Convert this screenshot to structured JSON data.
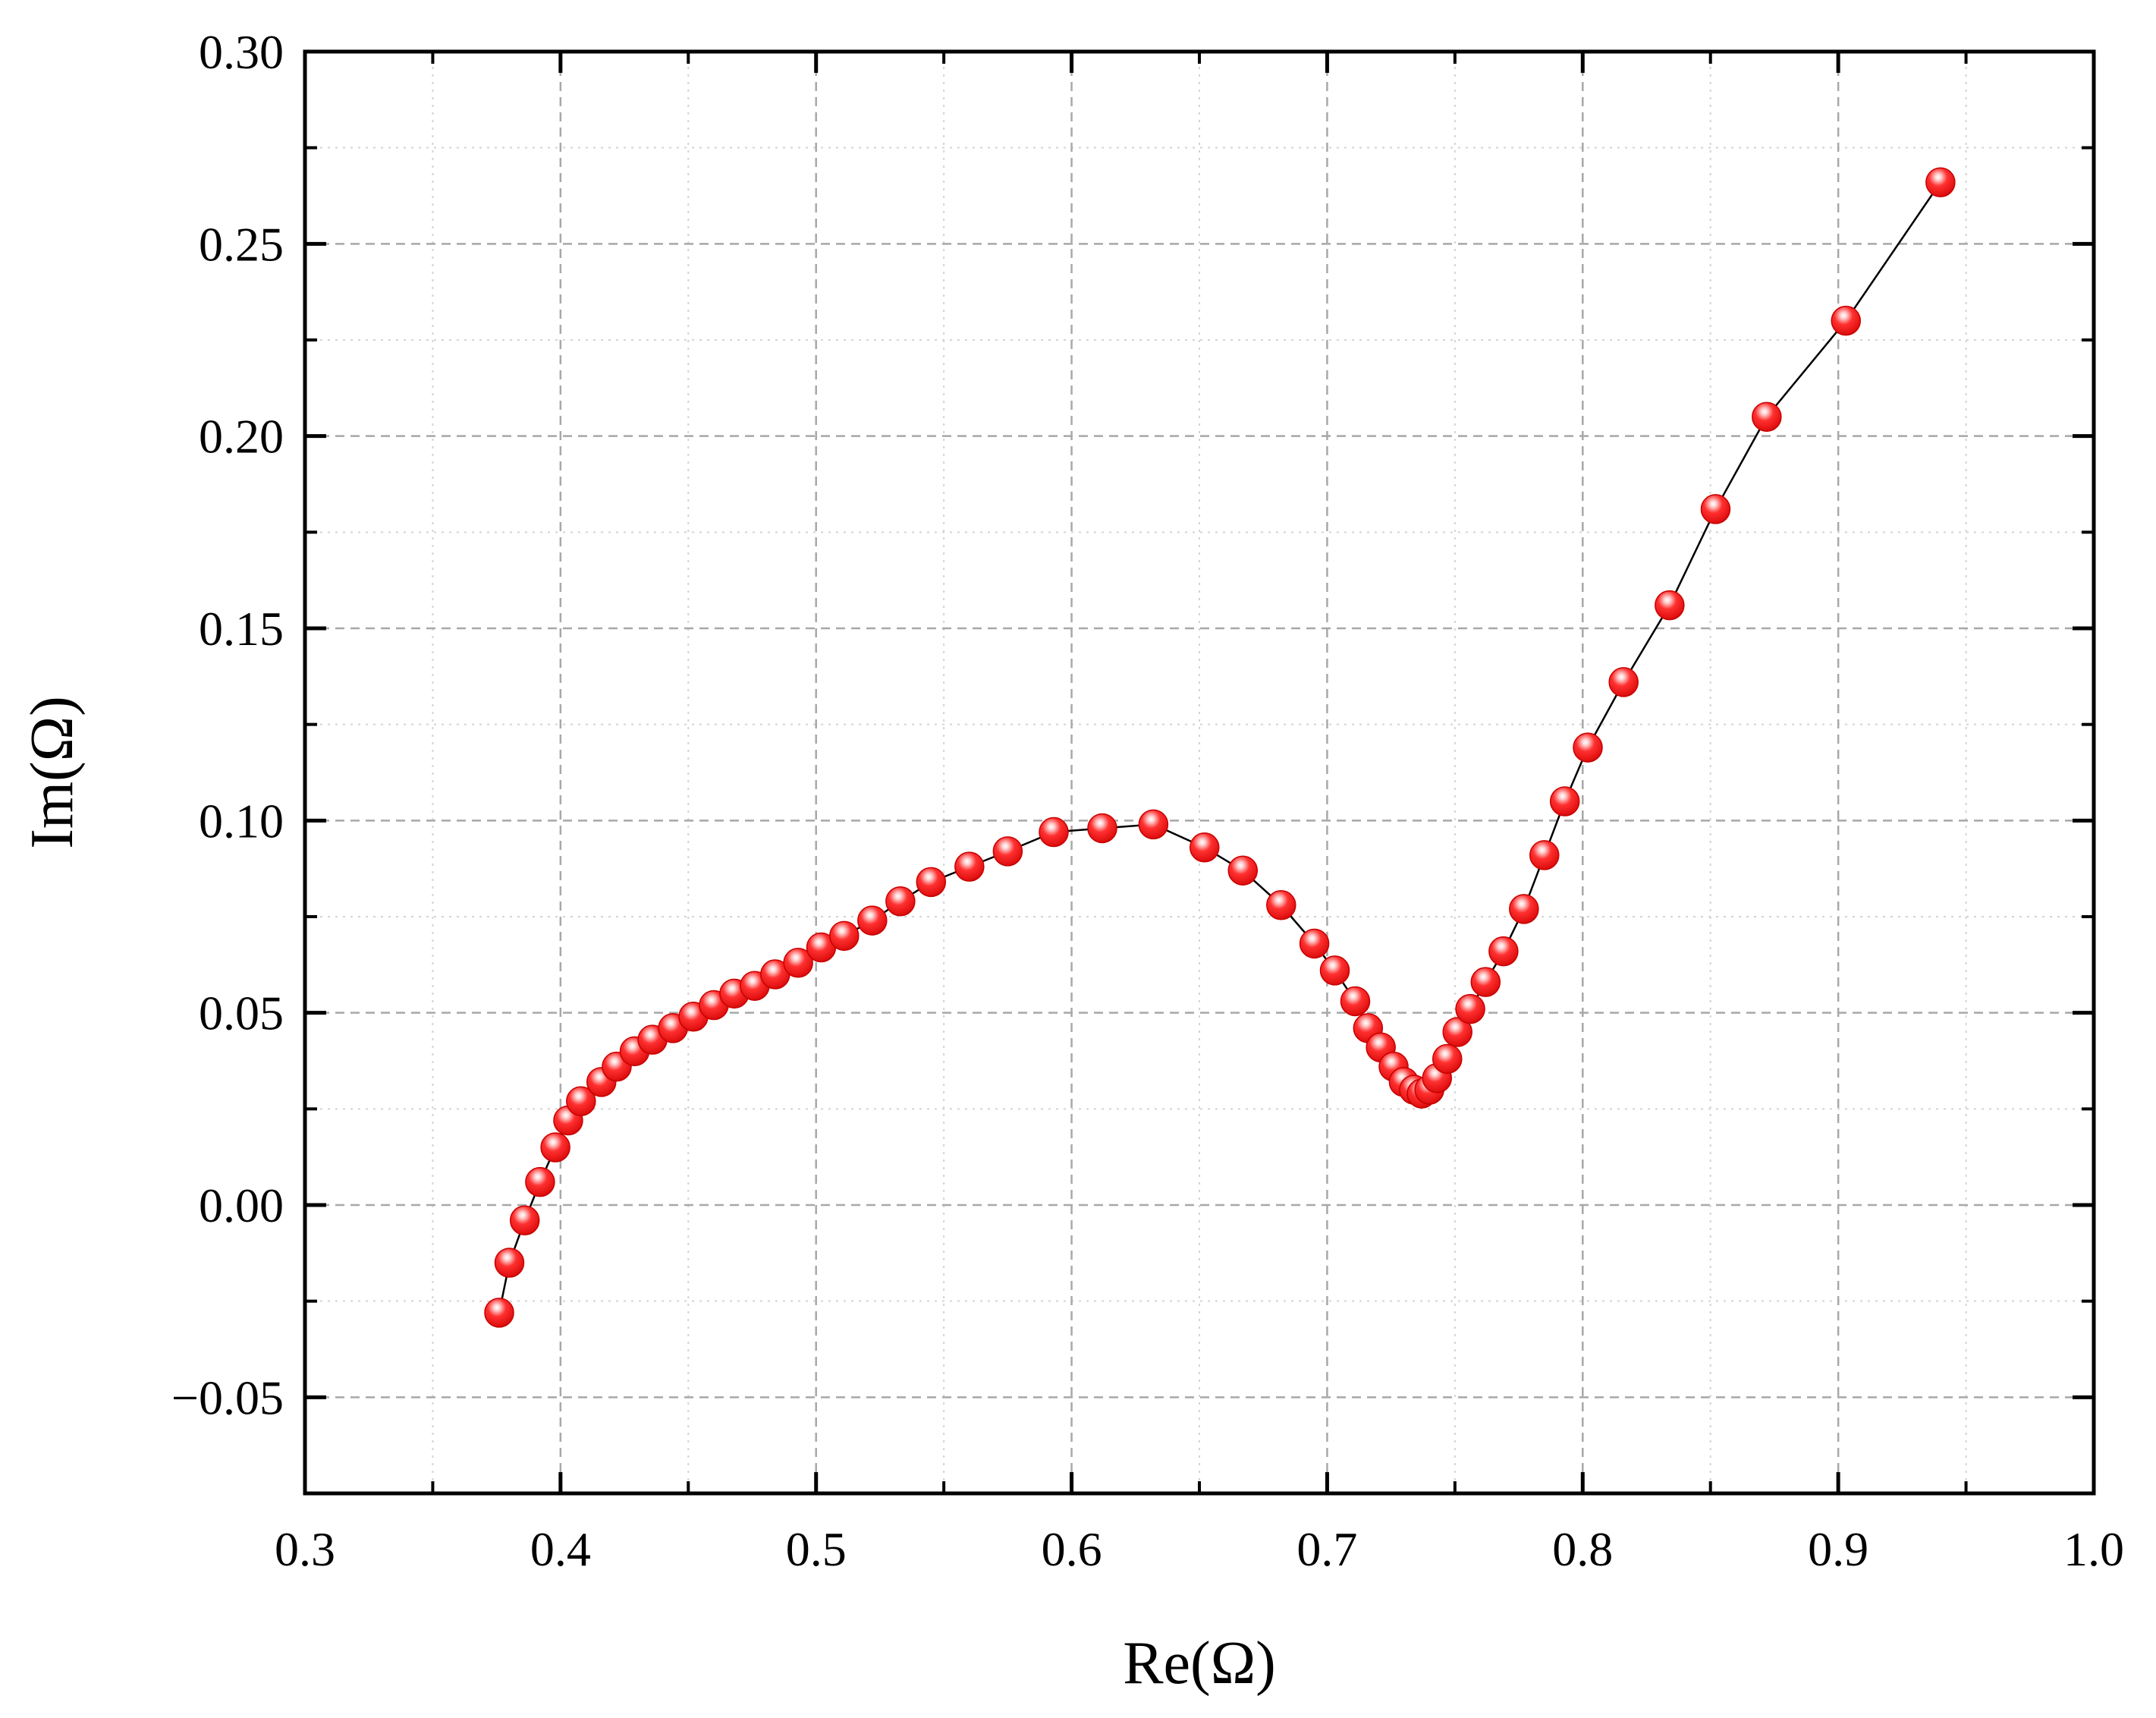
{
  "chart_data": {
    "type": "scatter",
    "xlabel": "Re(Ω)",
    "ylabel": "Im(Ω)",
    "xlim": [
      0.3,
      1.0
    ],
    "ylim": [
      -0.075,
      0.3
    ],
    "x_ticks": [
      "0.3",
      "0.4",
      "0.5",
      "0.6",
      "0.7",
      "0.8",
      "0.9",
      "1.0"
    ],
    "y_ticks": [
      "−0.05",
      "0.00",
      "0.05",
      "0.10",
      "0.15",
      "0.20",
      "0.25",
      "0.30"
    ],
    "grid": true,
    "marker_color": "#ff2020",
    "line_color": "#000000",
    "series": [
      {
        "x": [
          0.376,
          0.38,
          0.386,
          0.392,
          0.398,
          0.403,
          0.408,
          0.416,
          0.422,
          0.429,
          0.436,
          0.444,
          0.452,
          0.46,
          0.468,
          0.476,
          0.484,
          0.493,
          0.502,
          0.511,
          0.522,
          0.533,
          0.545,
          0.56,
          0.575,
          0.593,
          0.612,
          0.632,
          0.652,
          0.667,
          0.682,
          0.695,
          0.703,
          0.711,
          0.716,
          0.721,
          0.726,
          0.73,
          0.734,
          0.737,
          0.74,
          0.743,
          0.747,
          0.751,
          0.756,
          0.762,
          0.769,
          0.777,
          0.785,
          0.793,
          0.802,
          0.816,
          0.834,
          0.852,
          0.872,
          0.903,
          0.94
        ],
        "y": [
          -0.028,
          -0.015,
          -0.004,
          0.006,
          0.015,
          0.022,
          0.027,
          0.032,
          0.036,
          0.04,
          0.043,
          0.046,
          0.049,
          0.052,
          0.055,
          0.057,
          0.06,
          0.063,
          0.067,
          0.07,
          0.074,
          0.079,
          0.084,
          0.088,
          0.092,
          0.097,
          0.098,
          0.099,
          0.093,
          0.087,
          0.078,
          0.068,
          0.061,
          0.053,
          0.046,
          0.041,
          0.036,
          0.032,
          0.03,
          0.029,
          0.03,
          0.033,
          0.038,
          0.045,
          0.051,
          0.058,
          0.066,
          0.077,
          0.091,
          0.105,
          0.119,
          0.136,
          0.156,
          0.181,
          0.205,
          0.23,
          0.266
        ]
      }
    ]
  }
}
